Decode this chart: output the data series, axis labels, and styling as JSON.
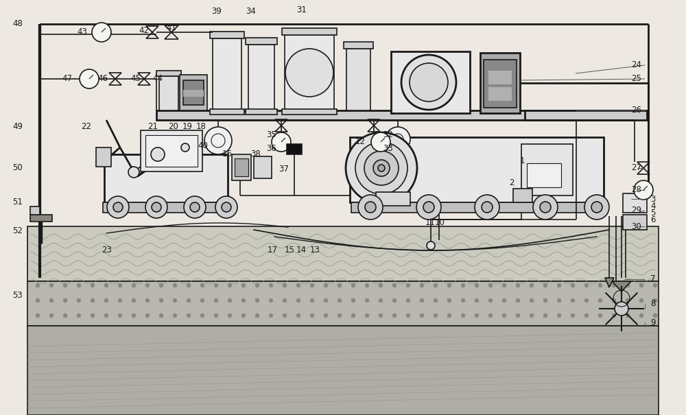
{
  "bg": "#ede9e2",
  "lc": "#1a1a1a",
  "ground1_fc": "#c8c8bc",
  "ground2_fc": "#b4b4aa",
  "ground3_fc": "#a8a8a0",
  "fill_light": "#e8e8e8",
  "fill_mid": "#d0d0c8",
  "fill_dark": "#888880",
  "fill_gray": "#aaaaaa"
}
